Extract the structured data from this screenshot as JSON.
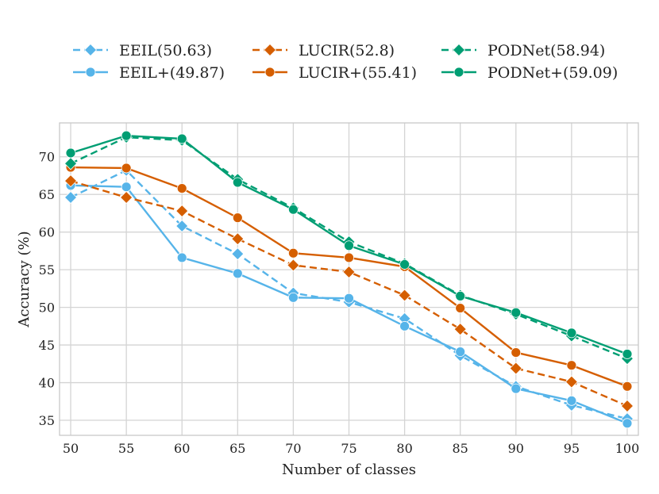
{
  "chart_data": {
    "type": "line",
    "title": "",
    "xlabel": "Number of classes",
    "ylabel": "Accuracy (%)",
    "x": [
      50,
      55,
      60,
      65,
      70,
      75,
      80,
      85,
      90,
      95,
      100
    ],
    "xlim": [
      49,
      101
    ],
    "ylim": [
      33,
      74.5
    ],
    "xticks": [
      50,
      55,
      60,
      65,
      70,
      75,
      80,
      85,
      90,
      95,
      100
    ],
    "yticks": [
      35,
      40,
      45,
      50,
      55,
      60,
      65,
      70
    ],
    "grid": true,
    "legend_position": "top, above plot, 3 columns",
    "series": [
      {
        "name": "EEIL(50.63)",
        "color": "#56B4E9",
        "dash": "dashed",
        "marker": "diamond",
        "values": [
          64.6,
          68.2,
          60.8,
          57.1,
          51.9,
          50.7,
          48.5,
          43.6,
          39.5,
          37.0,
          35.2
        ]
      },
      {
        "name": "EEIL+(49.87)",
        "color": "#56B4E9",
        "dash": "solid",
        "marker": "circle",
        "values": [
          66.2,
          66.0,
          56.6,
          54.5,
          51.3,
          51.2,
          47.5,
          44.1,
          39.2,
          37.6,
          34.6
        ]
      },
      {
        "name": "LUCIR(52.8)",
        "color": "#D55E00",
        "dash": "dashed",
        "marker": "diamond",
        "values": [
          66.8,
          64.6,
          62.8,
          59.1,
          55.6,
          54.7,
          51.6,
          47.1,
          41.9,
          40.1,
          36.9
        ]
      },
      {
        "name": "LUCIR+(55.41)",
        "color": "#D55E00",
        "dash": "solid",
        "marker": "circle",
        "values": [
          68.6,
          68.5,
          65.8,
          61.9,
          57.2,
          56.6,
          55.4,
          49.9,
          44.0,
          42.3,
          39.5
        ]
      },
      {
        "name": "PODNet(58.94)",
        "color": "#009E73",
        "dash": "dashed",
        "marker": "diamond",
        "values": [
          69.1,
          72.6,
          72.2,
          67.0,
          63.2,
          58.7,
          55.8,
          51.6,
          49.1,
          46.2,
          43.2
        ]
      },
      {
        "name": "PODNet+(59.09)",
        "color": "#009E73",
        "dash": "solid",
        "marker": "circle",
        "values": [
          70.5,
          72.8,
          72.4,
          66.6,
          63.0,
          58.2,
          55.7,
          51.5,
          49.3,
          46.6,
          43.8
        ]
      }
    ]
  }
}
